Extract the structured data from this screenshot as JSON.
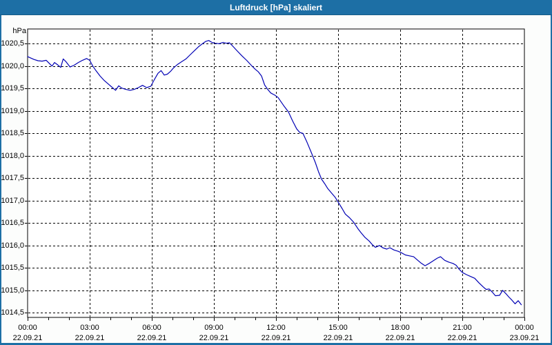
{
  "window": {
    "title": "Luftdruck [hPa] skaliert"
  },
  "colors": {
    "titlebar": "#1d6fa5",
    "window_border": "#1d6fa5",
    "title_text": "#ffffff",
    "plot_background": "#ffffff",
    "frame": "#000000",
    "grid": "#000000",
    "text": "#000000",
    "line": "#0000b4"
  },
  "chart_data": {
    "type": "line",
    "title": "Luftdruck [hPa] skaliert",
    "xlabel": "",
    "ylabel": "hPa",
    "ylim": [
      1014.5,
      1020.5
    ],
    "ytick_step": 0.5,
    "yticks": [
      {
        "value": 1020.5,
        "label": "1020,5"
      },
      {
        "value": 1020.0,
        "label": "1020,0"
      },
      {
        "value": 1019.5,
        "label": "1019,5"
      },
      {
        "value": 1019.0,
        "label": "1019,0"
      },
      {
        "value": 1018.5,
        "label": "1018,5"
      },
      {
        "value": 1018.0,
        "label": "1018,0"
      },
      {
        "value": 1017.5,
        "label": "1017,5"
      },
      {
        "value": 1017.0,
        "label": "1017,0"
      },
      {
        "value": 1016.5,
        "label": "1016,5"
      },
      {
        "value": 1016.0,
        "label": "1016,0"
      },
      {
        "value": 1015.5,
        "label": "1015,5"
      },
      {
        "value": 1015.0,
        "label": "1015,0"
      },
      {
        "value": 1014.5,
        "label": "1014,5"
      }
    ],
    "x_hours_range": [
      0,
      24
    ],
    "x_minor_tick_hours": 1,
    "grid": "dashed",
    "legend": "none",
    "xticks": [
      {
        "hour": 0,
        "time": "00:00",
        "date": "22.09.21"
      },
      {
        "hour": 3,
        "time": "03:00",
        "date": "22.09.21"
      },
      {
        "hour": 6,
        "time": "06:00",
        "date": "22.09.21"
      },
      {
        "hour": 9,
        "time": "09:00",
        "date": "22.09.21"
      },
      {
        "hour": 12,
        "time": "12:00",
        "date": "22.09.21"
      },
      {
        "hour": 15,
        "time": "15:00",
        "date": "22.09.21"
      },
      {
        "hour": 18,
        "time": "18:00",
        "date": "22.09.21"
      },
      {
        "hour": 21,
        "time": "21:00",
        "date": "22.09.21"
      },
      {
        "hour": 24,
        "time": "00:00",
        "date": "23.09.21"
      }
    ],
    "series": [
      {
        "name": "Luftdruck",
        "unit": "hPa",
        "points": [
          [
            0,
            1020.21
          ],
          [
            0.15,
            1020.18
          ],
          [
            0.3,
            1020.15
          ],
          [
            0.5,
            1020.12
          ],
          [
            0.7,
            1020.11
          ],
          [
            0.9,
            1020.13
          ],
          [
            1.05,
            1020.06
          ],
          [
            1.18,
            1020.0
          ],
          [
            1.3,
            1020.08
          ],
          [
            1.45,
            1020.03
          ],
          [
            1.6,
            1019.97
          ],
          [
            1.72,
            1020.16
          ],
          [
            1.85,
            1020.1
          ],
          [
            2.05,
            1019.98
          ],
          [
            2.25,
            1020.02
          ],
          [
            2.45,
            1020.08
          ],
          [
            2.65,
            1020.13
          ],
          [
            2.85,
            1020.17
          ],
          [
            3.0,
            1020.13
          ],
          [
            3.15,
            1020.0
          ],
          [
            3.3,
            1019.9
          ],
          [
            3.5,
            1019.78
          ],
          [
            3.7,
            1019.68
          ],
          [
            3.9,
            1019.6
          ],
          [
            4.1,
            1019.52
          ],
          [
            4.25,
            1019.46
          ],
          [
            4.4,
            1019.56
          ],
          [
            4.55,
            1019.51
          ],
          [
            4.75,
            1019.48
          ],
          [
            4.95,
            1019.46
          ],
          [
            5.15,
            1019.48
          ],
          [
            5.35,
            1019.52
          ],
          [
            5.55,
            1019.57
          ],
          [
            5.75,
            1019.52
          ],
          [
            5.95,
            1019.55
          ],
          [
            6.1,
            1019.68
          ],
          [
            6.3,
            1019.84
          ],
          [
            6.45,
            1019.9
          ],
          [
            6.6,
            1019.8
          ],
          [
            6.75,
            1019.82
          ],
          [
            6.9,
            1019.88
          ],
          [
            7.05,
            1019.96
          ],
          [
            7.25,
            1020.04
          ],
          [
            7.45,
            1020.1
          ],
          [
            7.65,
            1020.16
          ],
          [
            7.85,
            1020.25
          ],
          [
            8.05,
            1020.34
          ],
          [
            8.25,
            1020.43
          ],
          [
            8.45,
            1020.5
          ],
          [
            8.6,
            1020.55
          ],
          [
            8.75,
            1020.57
          ],
          [
            8.9,
            1020.53
          ],
          [
            9.05,
            1020.51
          ],
          [
            9.25,
            1020.5
          ],
          [
            9.45,
            1020.53
          ],
          [
            9.6,
            1020.51
          ],
          [
            9.75,
            1020.52
          ],
          [
            9.9,
            1020.45
          ],
          [
            10.1,
            1020.35
          ],
          [
            10.35,
            1020.23
          ],
          [
            10.6,
            1020.12
          ],
          [
            10.8,
            1020.02
          ],
          [
            11.0,
            1019.93
          ],
          [
            11.15,
            1019.87
          ],
          [
            11.3,
            1019.78
          ],
          [
            11.45,
            1019.58
          ],
          [
            11.6,
            1019.48
          ],
          [
            11.75,
            1019.4
          ],
          [
            11.95,
            1019.35
          ],
          [
            12.1,
            1019.3
          ],
          [
            12.25,
            1019.2
          ],
          [
            12.4,
            1019.1
          ],
          [
            12.6,
            1018.98
          ],
          [
            12.8,
            1018.78
          ],
          [
            13.0,
            1018.6
          ],
          [
            13.15,
            1018.52
          ],
          [
            13.3,
            1018.5
          ],
          [
            13.5,
            1018.3
          ],
          [
            13.7,
            1018.08
          ],
          [
            13.9,
            1017.85
          ],
          [
            14.05,
            1017.65
          ],
          [
            14.2,
            1017.48
          ],
          [
            14.35,
            1017.38
          ],
          [
            14.5,
            1017.27
          ],
          [
            14.7,
            1017.16
          ],
          [
            14.85,
            1017.08
          ],
          [
            15.0,
            1016.97
          ],
          [
            15.2,
            1016.82
          ],
          [
            15.35,
            1016.7
          ],
          [
            15.55,
            1016.62
          ],
          [
            15.75,
            1016.52
          ],
          [
            15.95,
            1016.38
          ],
          [
            16.1,
            1016.29
          ],
          [
            16.3,
            1016.18
          ],
          [
            16.5,
            1016.1
          ],
          [
            16.65,
            1016.02
          ],
          [
            16.8,
            1015.96
          ],
          [
            17.0,
            1016.0
          ],
          [
            17.15,
            1015.95
          ],
          [
            17.35,
            1015.92
          ],
          [
            17.5,
            1015.95
          ],
          [
            17.7,
            1015.9
          ],
          [
            17.9,
            1015.87
          ],
          [
            18.05,
            1015.84
          ],
          [
            18.25,
            1015.79
          ],
          [
            18.45,
            1015.77
          ],
          [
            18.65,
            1015.75
          ],
          [
            18.85,
            1015.67
          ],
          [
            19.0,
            1015.61
          ],
          [
            19.2,
            1015.55
          ],
          [
            19.4,
            1015.6
          ],
          [
            19.6,
            1015.66
          ],
          [
            19.8,
            1015.72
          ],
          [
            19.95,
            1015.75
          ],
          [
            20.15,
            1015.67
          ],
          [
            20.35,
            1015.63
          ],
          [
            20.55,
            1015.6
          ],
          [
            20.7,
            1015.56
          ],
          [
            20.85,
            1015.47
          ],
          [
            21.0,
            1015.4
          ],
          [
            21.2,
            1015.35
          ],
          [
            21.4,
            1015.31
          ],
          [
            21.6,
            1015.27
          ],
          [
            21.8,
            1015.17
          ],
          [
            22.0,
            1015.08
          ],
          [
            22.15,
            1015.02
          ],
          [
            22.3,
            1015.03
          ],
          [
            22.45,
            1014.96
          ],
          [
            22.6,
            1014.88
          ],
          [
            22.8,
            1014.89
          ],
          [
            22.95,
            1015.0
          ],
          [
            23.1,
            1014.93
          ],
          [
            23.25,
            1014.85
          ],
          [
            23.4,
            1014.78
          ],
          [
            23.55,
            1014.7
          ],
          [
            23.7,
            1014.77
          ],
          [
            23.85,
            1014.68
          ]
        ]
      }
    ]
  }
}
